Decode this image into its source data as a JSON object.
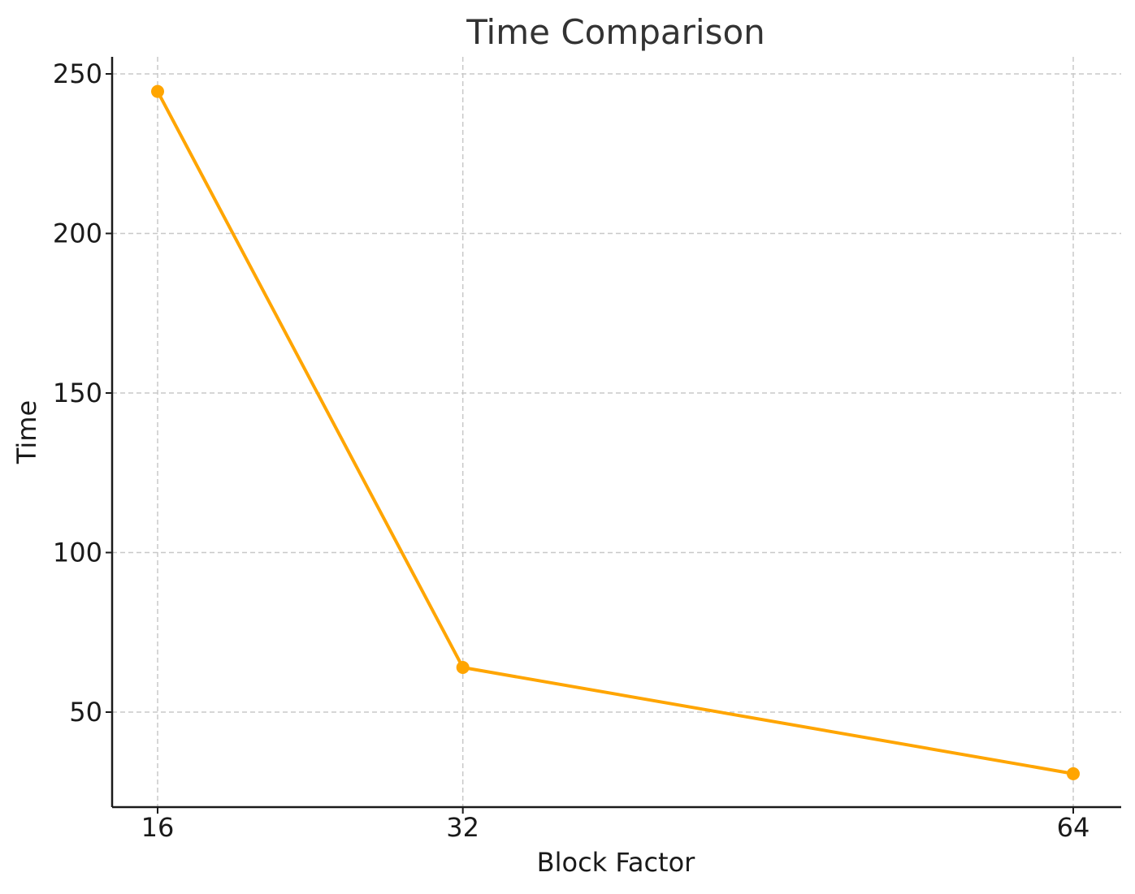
{
  "chart_data": {
    "type": "line",
    "title": "Time Comparison",
    "xlabel": "Block Factor",
    "ylabel": "Time",
    "categories": [
      "16",
      "32",
      "64"
    ],
    "x": [
      16,
      32,
      64
    ],
    "series": [
      {
        "values": [
          244.5,
          64,
          30.7
        ],
        "color": "#FFA500",
        "marker": "circle"
      }
    ],
    "ylim": [
      20,
      255
    ],
    "yticks": [
      50,
      100,
      150,
      200,
      250
    ],
    "ytick_labels": [
      "50",
      "100",
      "150",
      "200",
      "250"
    ],
    "grid": true,
    "legend": false
  }
}
